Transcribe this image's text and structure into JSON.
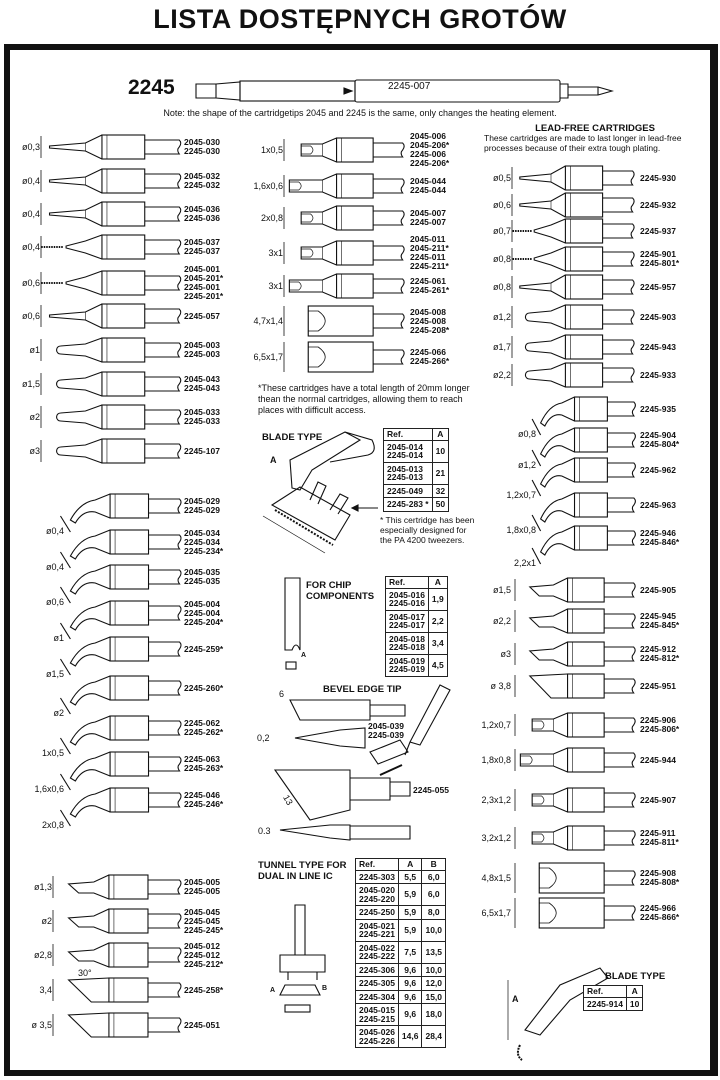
{
  "title": "LISTA DOSTĘPNYCH GROTÓW",
  "header": {
    "model": "2245",
    "cartridge_ref": "2245-007",
    "note": "Note: the shape of the cartridgetips 2045 and 2245 is the same, only changes the heating element."
  },
  "left": {
    "straight": [
      {
        "dim": "ø0,3",
        "codes": [
          "2045-030",
          "2245-030"
        ],
        "shape": "cone"
      },
      {
        "dim": "ø0,4",
        "codes": [
          "2045-032",
          "2245-032"
        ],
        "shape": "cone"
      },
      {
        "dim": "ø0,4",
        "codes": [
          "2045-036",
          "2245-036"
        ],
        "shape": "cone"
      },
      {
        "dim": "ø0,4",
        "codes": [
          "2045-037",
          "2245-037"
        ],
        "shape": "cone-short"
      },
      {
        "dim": "ø0,6",
        "codes": [
          "2045-001",
          "2045-201*",
          "2245-001",
          "2245-201*"
        ],
        "shape": "cone-short"
      },
      {
        "dim": "ø0,6",
        "codes": [
          "2245-057"
        ],
        "shape": "cone"
      },
      {
        "dim": "ø1",
        "codes": [
          "2045-003",
          "2245-003"
        ],
        "shape": "cone-round"
      },
      {
        "dim": "ø1,5",
        "codes": [
          "2045-043",
          "2245-043"
        ],
        "shape": "cone-round"
      },
      {
        "dim": "ø2",
        "codes": [
          "2045-033",
          "2245-033"
        ],
        "shape": "cone-round"
      },
      {
        "dim": "ø3",
        "codes": [
          "2245-107"
        ],
        "shape": "cone-round"
      }
    ],
    "bent": [
      {
        "dim": "ø0,4",
        "codes": [
          "2045-029",
          "2245-029"
        ],
        "shape": "bent"
      },
      {
        "dim": "ø0,4",
        "codes": [
          "2045-034",
          "2245-034",
          "2245-234*"
        ],
        "shape": "bent"
      },
      {
        "dim": "ø0,6",
        "codes": [
          "2045-035",
          "2245-035"
        ],
        "shape": "bent"
      },
      {
        "dim": "ø1",
        "codes": [
          "2045-004",
          "2245-004",
          "2245-204*"
        ],
        "shape": "bent"
      },
      {
        "dim": "ø1,5",
        "codes": [
          "2245-259*"
        ],
        "shape": "bent"
      },
      {
        "dim": "ø2",
        "codes": [
          "2245-260*"
        ],
        "shape": "bent"
      },
      {
        "dim": "1x0,5",
        "codes": [
          "2245-062",
          "2245-262*"
        ],
        "shape": "bent"
      },
      {
        "dim": "1,6x0,6",
        "codes": [
          "2245-063",
          "2245-263*"
        ],
        "shape": "bent"
      },
      {
        "dim": "2x0,8",
        "codes": [
          "2245-046",
          "2245-246*"
        ],
        "shape": "bent"
      }
    ],
    "bevel": [
      {
        "dim": "ø1,3",
        "codes": [
          "2045-005",
          "2245-005"
        ],
        "shape": "bevel"
      },
      {
        "dim": "ø2",
        "codes": [
          "2045-045",
          "2245-045",
          "2245-245*"
        ],
        "shape": "bevel"
      },
      {
        "dim": "ø2,8",
        "codes": [
          "2045-012",
          "2245-012",
          "2245-212*"
        ],
        "shape": "bevel"
      },
      {
        "dim": "3,4",
        "codes": [
          "2245-258*"
        ],
        "shape": "bevel-large",
        "angle": "30°"
      },
      {
        "dim": "ø 3,5",
        "codes": [
          "2245-051"
        ],
        "shape": "bevel-large"
      }
    ]
  },
  "middle": {
    "chisel": [
      {
        "dim": "1x0,5",
        "codes": [
          "2045-006",
          "2045-206*",
          "2245-006",
          "2245-206*"
        ],
        "shape": "chisel"
      },
      {
        "dim": "1,6x0,6",
        "codes": [
          "2045-044",
          "2245-044"
        ],
        "shape": "chisel-long"
      },
      {
        "dim": "2x0,8",
        "codes": [
          "2045-007",
          "2245-007"
        ],
        "shape": "chisel"
      },
      {
        "dim": "3x1",
        "codes": [
          "2045-011",
          "2045-211*",
          "2245-011",
          "2245-211*"
        ],
        "shape": "chisel"
      },
      {
        "dim": "3x1",
        "codes": [
          "2245-061",
          "2245-261*"
        ],
        "shape": "chisel-long"
      },
      {
        "dim": "4,7x1,4",
        "codes": [
          "2045-008",
          "2245-008",
          "2245-208*"
        ],
        "shape": "wide"
      },
      {
        "dim": "6,5x1,7",
        "codes": [
          "2245-066",
          "2245-266*"
        ],
        "shape": "wide"
      }
    ],
    "footnote": "*These cartridges have a total length of 20mm longer thean the normal cartridges, allowing them to reach places with difficult access.",
    "blade": {
      "title": "BLADE TYPE",
      "dim_label": "A",
      "headers": [
        "Ref.",
        "A"
      ],
      "rows": [
        {
          "ref": [
            "2045-014",
            "2245-014"
          ],
          "a": "10"
        },
        {
          "ref": [
            "2045-013",
            "2245-013"
          ],
          "a": "21"
        },
        {
          "ref": [
            "2245-049"
          ],
          "a": "32"
        },
        {
          "ref": [
            "2245-283 *"
          ],
          "a": "50"
        }
      ],
      "note": "* This certridge has been especially designed for the PA 4200 tweezers."
    },
    "chip": {
      "title": "FOR CHIP COMPONENTS",
      "dim_label": "A",
      "headers": [
        "Ref.",
        "A"
      ],
      "rows": [
        {
          "ref": [
            "2045-016",
            "2245-016"
          ],
          "a": "1,9"
        },
        {
          "ref": [
            "2045-017",
            "2245-017"
          ],
          "a": "2,2"
        },
        {
          "ref": [
            "2045-018",
            "2245-018"
          ],
          "a": "3,4"
        },
        {
          "ref": [
            "2045-019",
            "2245-019"
          ],
          "a": "4,5"
        }
      ]
    },
    "bevel_edge": {
      "title": "BEVEL EDGE TIP",
      "dim_a": "6",
      "dim_b": "0,2",
      "codes_a": [
        "2045-039",
        "2245-039"
      ],
      "dim_c": "13",
      "dim_d": "0.3",
      "codes_b": [
        "2245-055"
      ]
    },
    "tunnel": {
      "title": "TUNNEL TYPE FOR DUAL IN LINE IC",
      "dim_a": "A",
      "dim_b": "B",
      "headers": [
        "Ref.",
        "A",
        "B"
      ],
      "rows": [
        {
          "ref": [
            "2245-303"
          ],
          "a": "5,5",
          "b": "6,0"
        },
        {
          "ref": [
            "2045-020",
            "2245-220"
          ],
          "a": "5,9",
          "b": "6,0"
        },
        {
          "ref": [
            "2245-250"
          ],
          "a": "5,9",
          "b": "8,0"
        },
        {
          "ref": [
            "2045-021",
            "2245-221"
          ],
          "a": "5,9",
          "b": "10,0"
        },
        {
          "ref": [
            "2045-022",
            "2245-222"
          ],
          "a": "7,5",
          "b": "13,5"
        },
        {
          "ref": [
            "2245-306"
          ],
          "a": "9,6",
          "b": "10,0"
        },
        {
          "ref": [
            "2245-305"
          ],
          "a": "9,6",
          "b": "12,0"
        },
        {
          "ref": [
            "2245-304"
          ],
          "a": "9,6",
          "b": "15,0"
        },
        {
          "ref": [
            "2045-015",
            "2245-215"
          ],
          "a": "9,6",
          "b": "18,0"
        },
        {
          "ref": [
            "2045-026",
            "2245-226"
          ],
          "a": "14,6",
          "b": "28,4"
        }
      ]
    }
  },
  "right": {
    "title": "LEAD-FREE CARTRIDGES",
    "description": "These cartridges are made to last longer in lead-free processes because of their extra tough plating.",
    "straight": [
      {
        "dim": "ø0,5",
        "codes": [
          "2245-930"
        ],
        "shape": "cone"
      },
      {
        "dim": "ø0,6",
        "codes": [
          "2245-932"
        ],
        "shape": "cone"
      },
      {
        "dim": "ø0,7",
        "codes": [
          "2245-937"
        ],
        "shape": "cone-short"
      },
      {
        "dim": "ø0,8",
        "codes": [
          "2245-901",
          "2245-801*"
        ],
        "shape": "cone-short"
      },
      {
        "dim": "ø0,8",
        "codes": [
          "2245-957"
        ],
        "shape": "cone"
      },
      {
        "dim": "ø1,2",
        "codes": [
          "2245-903"
        ],
        "shape": "cone-round"
      },
      {
        "dim": "ø1,7",
        "codes": [
          "2245-943"
        ],
        "shape": "cone-round"
      },
      {
        "dim": "ø2,2",
        "codes": [
          "2245-933"
        ],
        "shape": "cone-round"
      }
    ],
    "bent": [
      {
        "dim": "ø0,8",
        "codes": [
          "2245-935"
        ],
        "shape": "bent"
      },
      {
        "dim": "ø1,2",
        "codes": [
          "2245-904",
          "2245-804*"
        ],
        "shape": "bent"
      },
      {
        "dim": "1,2x0,7",
        "codes": [
          "2245-962"
        ],
        "shape": "bent"
      },
      {
        "dim": "1,8x0,8",
        "codes": [
          "2245-963"
        ],
        "shape": "bent"
      },
      {
        "dim": "2,2x1",
        "codes": [
          "2245-946",
          "2245-846*"
        ],
        "shape": "bent"
      }
    ],
    "bevel": [
      {
        "dim": "ø1,5",
        "codes": [
          "2245-905"
        ],
        "shape": "bevel"
      },
      {
        "dim": "ø2,2",
        "codes": [
          "2245-945",
          "2245-845*"
        ],
        "shape": "bevel"
      },
      {
        "dim": "ø3",
        "codes": [
          "2245-912",
          "2245-812*"
        ],
        "shape": "bevel"
      },
      {
        "dim": "ø 3,8",
        "codes": [
          "2245-951"
        ],
        "shape": "bevel-large"
      }
    ],
    "chisel": [
      {
        "dim": "1,2x0,7",
        "codes": [
          "2245-906",
          "2245-806*"
        ],
        "shape": "chisel"
      },
      {
        "dim": "1,8x0,8",
        "codes": [
          "2245-944"
        ],
        "shape": "chisel-long"
      },
      {
        "dim": "2,3x1,2",
        "codes": [
          "2245-907"
        ],
        "shape": "chisel"
      },
      {
        "dim": "3,2x1,2",
        "codes": [
          "2245-911",
          "2245-811*"
        ],
        "shape": "chisel"
      },
      {
        "dim": "4,8x1,5",
        "codes": [
          "2245-908",
          "2245-808*"
        ],
        "shape": "wide"
      },
      {
        "dim": "6,5x1,7",
        "codes": [
          "2245-966",
          "2245-866*"
        ],
        "shape": "wide"
      }
    ],
    "blade": {
      "title": "BLADE TYPE",
      "dim_label": "A",
      "headers": [
        "Ref.",
        "A"
      ],
      "rows": [
        {
          "ref": [
            "2245-914"
          ],
          "a": "10"
        }
      ]
    }
  }
}
